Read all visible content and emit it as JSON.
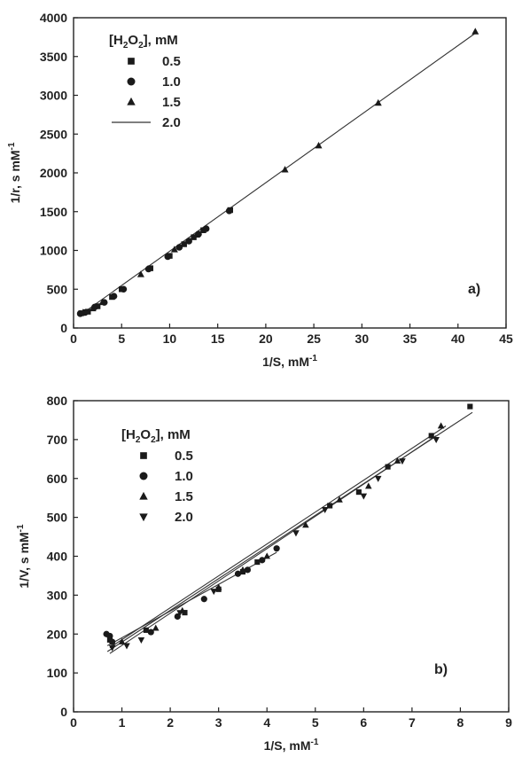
{
  "chart_data": [
    {
      "type": "scatter",
      "panel_label": "a)",
      "xlabel": "1/S, mM",
      "xlabel_sup": "-1",
      "ylabel": "1/r, s mM",
      "ylabel_sup": "-1",
      "xlim": [
        0,
        45
      ],
      "ylim": [
        0,
        4000
      ],
      "xticks": [
        0,
        5,
        10,
        15,
        20,
        25,
        30,
        35,
        40,
        45
      ],
      "yticks": [
        0,
        500,
        1000,
        1500,
        2000,
        2500,
        3000,
        3500,
        4000
      ],
      "legend_title_pre": "[H",
      "legend_title_sub1": "2",
      "legend_title_mid": "O",
      "legend_title_sub2": "2",
      "legend_title_post": "], mM",
      "legend_position": "top-left",
      "series": [
        {
          "name": "0.5",
          "marker": "square",
          "points": [
            [
              0.8,
              190
            ],
            [
              1.5,
              210
            ],
            [
              2.5,
              280
            ],
            [
              4.0,
              400
            ],
            [
              5.0,
              500
            ],
            [
              8.0,
              770
            ],
            [
              10.0,
              930
            ],
            [
              11.5,
              1080
            ],
            [
              12.5,
              1170
            ],
            [
              13.5,
              1260
            ],
            [
              16.3,
              1520
            ]
          ]
        },
        {
          "name": "1.0",
          "marker": "circle",
          "points": [
            [
              0.7,
              185
            ],
            [
              1.2,
              200
            ],
            [
              2.2,
              270
            ],
            [
              3.2,
              330
            ],
            [
              4.2,
              410
            ],
            [
              5.2,
              500
            ],
            [
              7.8,
              760
            ],
            [
              9.8,
              920
            ],
            [
              11.0,
              1040
            ],
            [
              12.0,
              1120
            ],
            [
              13.0,
              1210
            ],
            [
              13.8,
              1280
            ],
            [
              16.2,
              1510
            ]
          ]
        },
        {
          "name": "1.5",
          "marker": "triangle",
          "points": [
            [
              1.0,
              200
            ],
            [
              2.0,
              250
            ],
            [
              3.0,
              330
            ],
            [
              7.0,
              690
            ],
            [
              10.5,
              1010
            ],
            [
              12.8,
              1200
            ],
            [
              22.0,
              2040
            ],
            [
              25.5,
              2350
            ],
            [
              31.7,
              2900
            ],
            [
              41.8,
              3820
            ]
          ]
        },
        {
          "name": "2.0",
          "marker": "line",
          "points": []
        }
      ],
      "fit_lines": [
        {
          "from": [
            0.7,
            168
          ],
          "to": [
            41.8,
            3800
          ]
        }
      ]
    },
    {
      "type": "scatter",
      "panel_label": "b)",
      "xlabel": "1/S, mM",
      "xlabel_sup": "-1",
      "ylabel": "1/V, s mM",
      "ylabel_sup": "-1",
      "xlim": [
        0,
        9
      ],
      "ylim": [
        0,
        800
      ],
      "xticks": [
        0,
        1,
        2,
        3,
        4,
        5,
        6,
        7,
        8,
        9
      ],
      "yticks": [
        0,
        100,
        200,
        300,
        400,
        500,
        600,
        700,
        800
      ],
      "legend_title_pre": "[H",
      "legend_title_sub1": "2",
      "legend_title_mid": "O",
      "legend_title_sub2": "2",
      "legend_title_post": "], mM",
      "legend_position": "top-left",
      "series": [
        {
          "name": "0.5",
          "marker": "square",
          "points": [
            [
              0.75,
              185
            ],
            [
              1.5,
              210
            ],
            [
              2.3,
              255
            ],
            [
              3.0,
              315
            ],
            [
              3.5,
              360
            ],
            [
              3.8,
              385
            ],
            [
              5.3,
              530
            ],
            [
              5.9,
              565
            ],
            [
              6.5,
              630
            ],
            [
              7.4,
              710
            ],
            [
              8.2,
              785
            ]
          ]
        },
        {
          "name": "1.0",
          "marker": "circle",
          "points": [
            [
              0.68,
              200
            ],
            [
              0.75,
              195
            ],
            [
              0.8,
              180
            ],
            [
              1.6,
              205
            ],
            [
              2.15,
              245
            ],
            [
              2.7,
              290
            ],
            [
              3.4,
              355
            ],
            [
              3.6,
              365
            ],
            [
              3.9,
              390
            ],
            [
              4.2,
              420
            ]
          ]
        },
        {
          "name": "1.5",
          "marker": "triangle",
          "points": [
            [
              1.0,
              180
            ],
            [
              1.7,
              215
            ],
            [
              2.25,
              260
            ],
            [
              3.0,
              320
            ],
            [
              3.5,
              365
            ],
            [
              4.0,
              400
            ],
            [
              4.8,
              480
            ],
            [
              5.5,
              545
            ],
            [
              6.1,
              580
            ],
            [
              6.7,
              645
            ],
            [
              7.6,
              735
            ]
          ]
        },
        {
          "name": "2.0",
          "marker": "triangle-down",
          "points": [
            [
              0.8,
              165
            ],
            [
              1.1,
              170
            ],
            [
              1.4,
              185
            ],
            [
              2.2,
              255
            ],
            [
              2.9,
              310
            ],
            [
              4.6,
              460
            ],
            [
              5.2,
              520
            ],
            [
              6.0,
              555
            ],
            [
              6.3,
              600
            ],
            [
              6.8,
              645
            ],
            [
              7.5,
              700
            ]
          ]
        }
      ],
      "fit_lines": [
        {
          "from": [
            0.7,
            155
          ],
          "to": [
            8.25,
            770
          ]
        },
        {
          "from": [
            0.7,
            170
          ],
          "to": [
            4.2,
            410
          ]
        },
        {
          "from": [
            0.75,
            165
          ],
          "to": [
            7.7,
            735
          ]
        },
        {
          "from": [
            0.75,
            150
          ],
          "to": [
            7.5,
            710
          ]
        }
      ]
    }
  ]
}
